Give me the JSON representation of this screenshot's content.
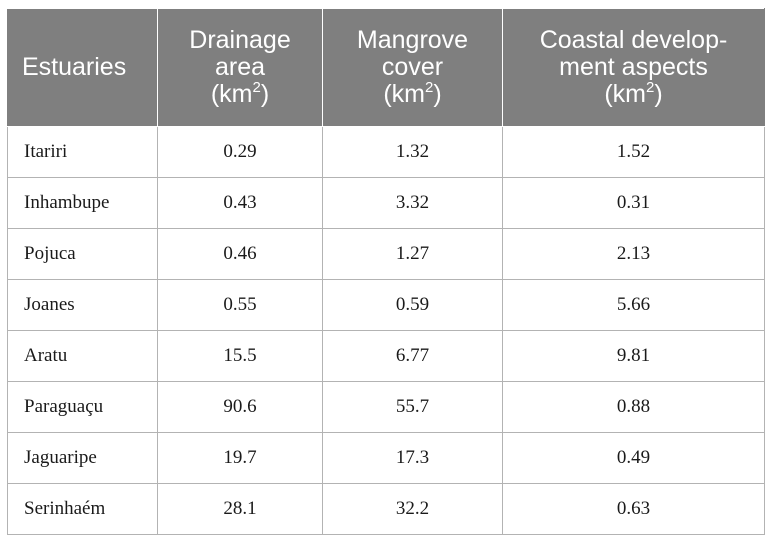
{
  "table": {
    "headers": {
      "estuaries": "Estuaries",
      "drainage": {
        "line1": "Drainage",
        "line2": "area",
        "unit_open": "(km",
        "sup": "2",
        "unit_close": ")"
      },
      "mangrove": {
        "line1": "Mangrove",
        "line2": "cover",
        "unit_open": "(km",
        "sup": "2",
        "unit_close": ")"
      },
      "coastal": {
        "line1": "Coastal develop-",
        "line2": "ment aspects",
        "unit_open": "(km",
        "sup": "2",
        "unit_close": ")"
      }
    },
    "rows": [
      {
        "name": "Itariri",
        "drainage": "0.29",
        "mangrove": "1.32",
        "coastal": "1.52"
      },
      {
        "name": "Inhambupe",
        "drainage": "0.43",
        "mangrove": "3.32",
        "coastal": "0.31"
      },
      {
        "name": "Pojuca",
        "drainage": "0.46",
        "mangrove": "1.27",
        "coastal": "2.13"
      },
      {
        "name": "Joanes",
        "drainage": "0.55",
        "mangrove": "0.59",
        "coastal": "5.66"
      },
      {
        "name": "Aratu",
        "drainage": "15.5",
        "mangrove": "6.77",
        "coastal": "9.81"
      },
      {
        "name": "Paraguaçu",
        "drainage": "90.6",
        "mangrove": "55.7",
        "coastal": "0.88"
      },
      {
        "name": "Jaguaripe",
        "drainage": "19.7",
        "mangrove": "17.3",
        "coastal": "0.49"
      },
      {
        "name": "Serinhaém",
        "drainage": "28.1",
        "mangrove": "32.2",
        "coastal": "0.63"
      }
    ]
  }
}
